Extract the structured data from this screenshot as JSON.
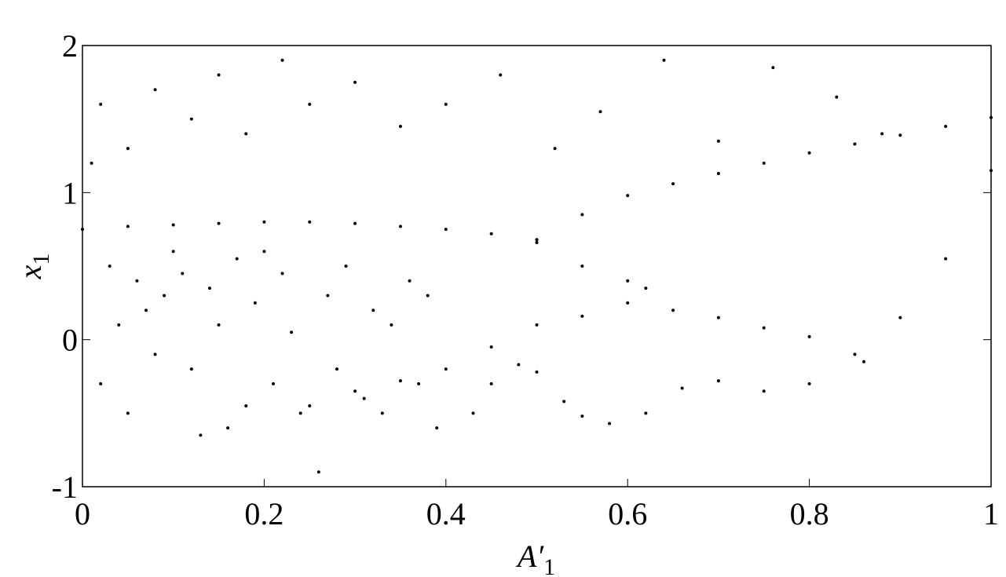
{
  "chart_data": {
    "type": "scatter",
    "xlabel": [
      "A′",
      "1"
    ],
    "ylabel": [
      "x",
      "1"
    ],
    "xlim": [
      0,
      1
    ],
    "ylim": [
      -1,
      2
    ],
    "xticks": [
      0,
      0.2,
      0.4,
      0.6,
      0.8,
      1
    ],
    "yticks": [
      -1,
      0,
      1,
      2
    ],
    "grid": false,
    "series": [
      {
        "color": "#000000",
        "x": [
          0.5,
          0.55,
          0.6,
          0.65,
          0.7,
          0.75,
          0.8,
          0.85,
          0.9,
          0.95,
          1.0
        ],
        "values": [
          0.68,
          0.85,
          0.98,
          1.06,
          1.13,
          1.2,
          1.27,
          1.33,
          1.39,
          1.45,
          1.51
        ]
      },
      {
        "color": "#000000",
        "x": [
          0,
          0.05,
          0.1,
          0.15,
          0.2,
          0.25,
          0.3,
          0.35,
          0.4,
          0.45,
          0.5,
          0.55,
          0.6
        ],
        "values": [
          0.75,
          0.77,
          0.78,
          0.79,
          0.8,
          0.8,
          0.79,
          0.77,
          0.75,
          0.72,
          0.66,
          0.5,
          0.4
        ]
      },
      {
        "color": "#000000",
        "x": [
          0.25,
          0.3,
          0.35,
          0.4,
          0.45,
          0.5,
          0.55,
          0.6,
          0.62,
          0.65,
          0.7,
          0.75,
          0.8,
          0.86
        ],
        "values": [
          -0.45,
          -0.35,
          -0.28,
          -0.2,
          -0.05,
          0.1,
          0.16,
          0.25,
          0.35,
          0.2,
          0.15,
          0.08,
          0.02,
          -0.15
        ]
      },
      {
        "color": "#000000",
        "x": [
          0.43,
          0.45,
          0.48,
          0.5,
          0.53,
          0.55,
          0.58,
          0.62,
          0.66,
          0.7,
          0.75,
          0.8,
          0.85,
          0.9,
          0.95,
          1.0
        ],
        "values": [
          -0.5,
          -0.3,
          -0.17,
          -0.22,
          -0.42,
          -0.52,
          -0.57,
          -0.5,
          -0.33,
          -0.28,
          -0.35,
          -0.3,
          -0.1,
          0.15,
          0.55,
          1.15
        ]
      },
      {
        "color": "#000000",
        "x": [
          0.01,
          0.02,
          0.03,
          0.04,
          0.05,
          0.06,
          0.07,
          0.08,
          0.09,
          0.1,
          0.11,
          0.12,
          0.13,
          0.14,
          0.15,
          0.16,
          0.17,
          0.18,
          0.19,
          0.2,
          0.21,
          0.22,
          0.23,
          0.24,
          0.26,
          0.27,
          0.28,
          0.29,
          0.31,
          0.32,
          0.33,
          0.34,
          0.36,
          0.37,
          0.38,
          0.39,
          0.02,
          0.05,
          0.08,
          0.12,
          0.15,
          0.18,
          0.22,
          0.25,
          0.3,
          0.35,
          0.4,
          0.46,
          0.52,
          0.57,
          0.64,
          0.7,
          0.76,
          0.83,
          0.88
        ],
        "values": [
          1.2,
          -0.3,
          0.5,
          0.1,
          -0.5,
          0.4,
          0.2,
          -0.1,
          0.3,
          0.6,
          0.45,
          -0.2,
          -0.65,
          0.35,
          0.1,
          -0.6,
          0.55,
          -0.45,
          0.25,
          0.6,
          -0.3,
          0.45,
          0.05,
          -0.5,
          -0.9,
          0.3,
          -0.2,
          0.5,
          -0.4,
          0.2,
          -0.5,
          0.1,
          0.4,
          -0.3,
          0.3,
          -0.6,
          1.6,
          1.3,
          1.7,
          1.5,
          1.8,
          1.4,
          1.9,
          1.6,
          1.75,
          1.45,
          1.6,
          1.8,
          1.3,
          1.55,
          1.9,
          1.35,
          1.85,
          1.65,
          1.4
        ]
      }
    ]
  }
}
